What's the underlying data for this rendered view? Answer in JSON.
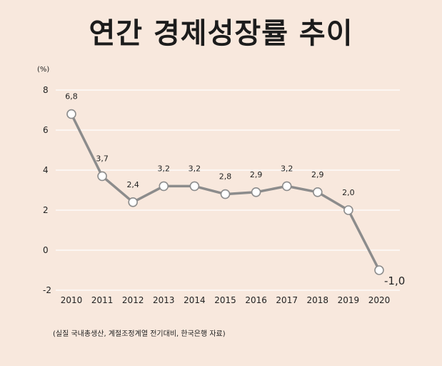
{
  "title": "연간 경제성장률 추이",
  "unit_label": "(%)",
  "source": "(실질 국내총생산,  계절조정계열  전기대비, 한국은행  자료)",
  "colors": {
    "background": "#f8e8dd",
    "line": "#8c8c8c",
    "marker_fill": "#ffffff",
    "marker_stroke": "#8c8c8c",
    "grid": "#ffffff"
  },
  "chart_data": {
    "type": "line",
    "title": "연간 경제성장률 추이",
    "xlabel": "",
    "ylabel": "(%)",
    "ylim": [
      -2,
      8
    ],
    "yticks": [
      8,
      6,
      4,
      2,
      0,
      -2
    ],
    "ytick_labels": [
      "8",
      "6",
      "4",
      "2",
      "0",
      "-2"
    ],
    "grid": true,
    "categories": [
      "2010",
      "2011",
      "2012",
      "2013",
      "2014",
      "2015",
      "2016",
      "2017",
      "2018",
      "2019",
      "2020"
    ],
    "series": [
      {
        "name": "경제성장률",
        "values": [
          6.8,
          3.7,
          2.4,
          3.2,
          3.2,
          2.8,
          2.9,
          3.2,
          2.9,
          2.0,
          -1.0
        ],
        "labels": [
          "6,8",
          "3,7",
          "2,4",
          "3,2",
          "3,2",
          "2,8",
          "2,9",
          "3,2",
          "2,9",
          "2,0",
          "-1,0"
        ]
      }
    ]
  }
}
